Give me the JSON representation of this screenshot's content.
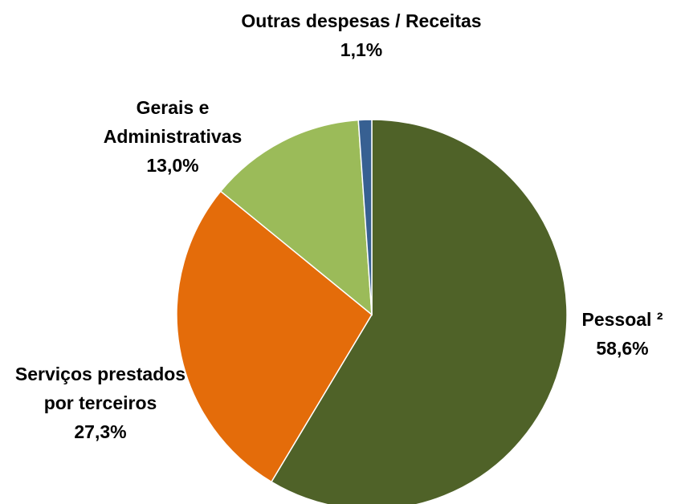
{
  "chart_data": {
    "type": "pie",
    "categories": [
      "Pessoal ²",
      "Serviços prestados por terceiros",
      "Gerais e Administrativas",
      "Outras despesas / Receitas"
    ],
    "values": [
      58.6,
      27.3,
      13.0,
      1.1
    ],
    "value_labels": [
      "58,6%",
      "27,3%",
      "13,0%",
      "1,1%"
    ],
    "colors": [
      "#4f6228",
      "#e46c0a",
      "#9bbb59",
      "#376092"
    ]
  }
}
